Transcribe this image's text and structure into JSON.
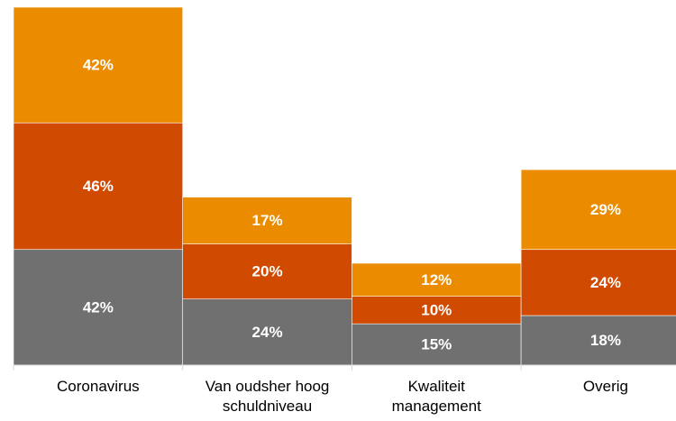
{
  "chart_data": {
    "type": "bar",
    "stacked": true,
    "categories": [
      "Coronavirus",
      "Van oudsher hoog schuldniveau",
      "Kwaliteit management",
      "Overig"
    ],
    "series": [
      {
        "color": "#707070",
        "values": [
          42,
          24,
          15,
          18
        ],
        "value_labels": [
          "42%",
          "24%",
          "15%",
          "18%"
        ]
      },
      {
        "color": "#d04a02",
        "values": [
          46,
          20,
          10,
          24
        ],
        "value_labels": [
          "46%",
          "20%",
          "10%",
          "24%"
        ]
      },
      {
        "color": "#eb8c00",
        "values": [
          42,
          17,
          12,
          29
        ],
        "value_labels": [
          "42%",
          "17%",
          "12%",
          "29%"
        ]
      }
    ]
  }
}
